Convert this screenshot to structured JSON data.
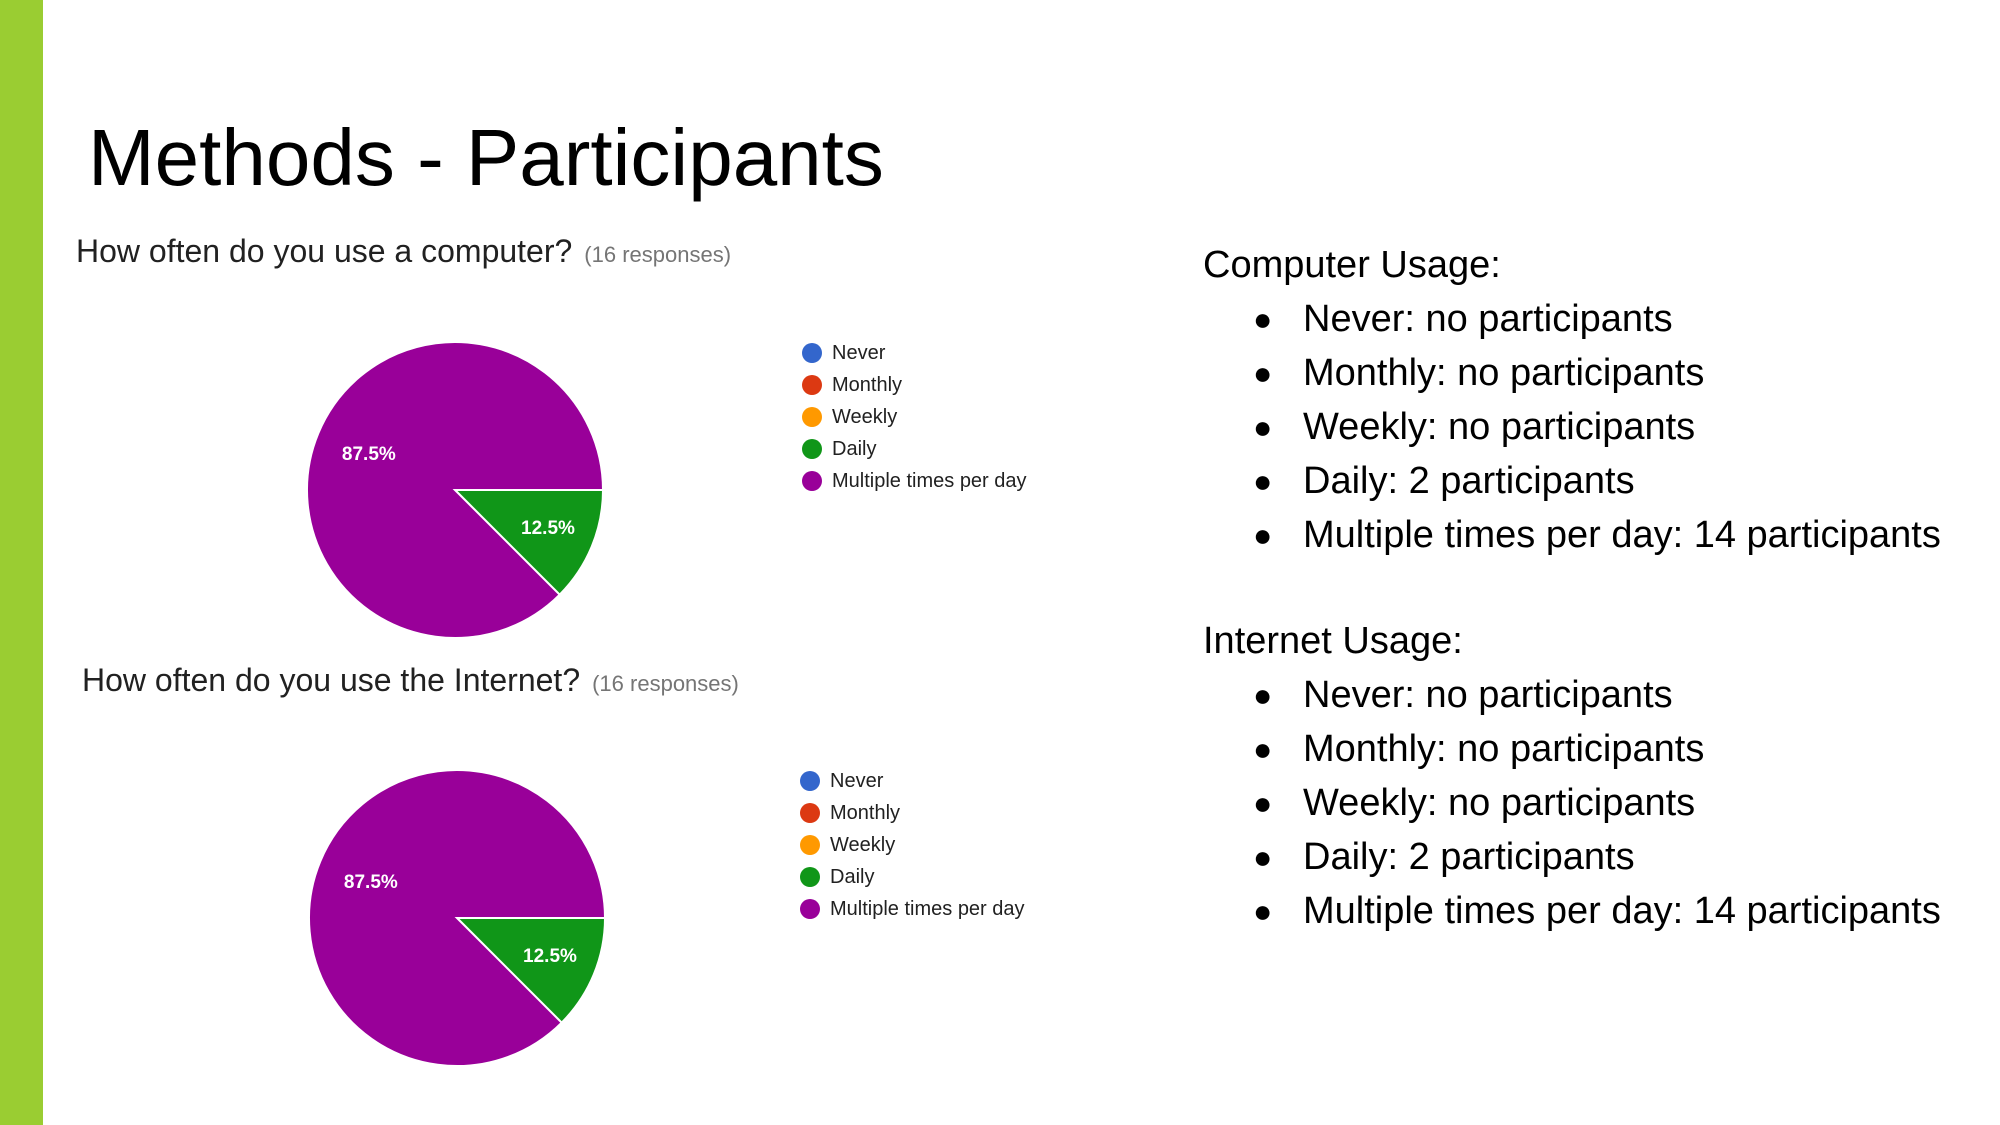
{
  "slide": {
    "title": "Methods - Participants",
    "accent_color": "#9ACD32"
  },
  "chart_data": [
    {
      "type": "pie",
      "title": "How often do you use a computer?",
      "subtitle": "(16 responses)",
      "categories": [
        "Never",
        "Monthly",
        "Weekly",
        "Daily",
        "Multiple times per day"
      ],
      "values": [
        0,
        0,
        0,
        2,
        14
      ],
      "percent_labels": [
        "",
        "",
        "",
        "12.5%",
        "87.5%"
      ],
      "colors": [
        "#3366CC",
        "#DC3912",
        "#FF9900",
        "#109618",
        "#990099"
      ],
      "legend": "right"
    },
    {
      "type": "pie",
      "title": "How often do you use the Internet?",
      "subtitle": "(16 responses)",
      "categories": [
        "Never",
        "Monthly",
        "Weekly",
        "Daily",
        "Multiple times per day"
      ],
      "values": [
        0,
        0,
        0,
        2,
        14
      ],
      "percent_labels": [
        "",
        "",
        "",
        "12.5%",
        "87.5%"
      ],
      "colors": [
        "#3366CC",
        "#DC3912",
        "#FF9900",
        "#109618",
        "#990099"
      ],
      "legend": "right"
    }
  ],
  "summary": [
    {
      "heading": "Computer Usage:",
      "items": [
        "Never: no participants",
        "Monthly: no participants",
        "Weekly: no participants",
        "Daily: 2 participants",
        "Multiple times per day: 14 participants"
      ]
    },
    {
      "heading": "Internet Usage:",
      "items": [
        "Never: no participants",
        "Monthly: no participants",
        "Weekly: no participants",
        "Daily: 2 participants",
        "Multiple times per day: 14 participants"
      ]
    }
  ],
  "bullet_symbol": "●"
}
